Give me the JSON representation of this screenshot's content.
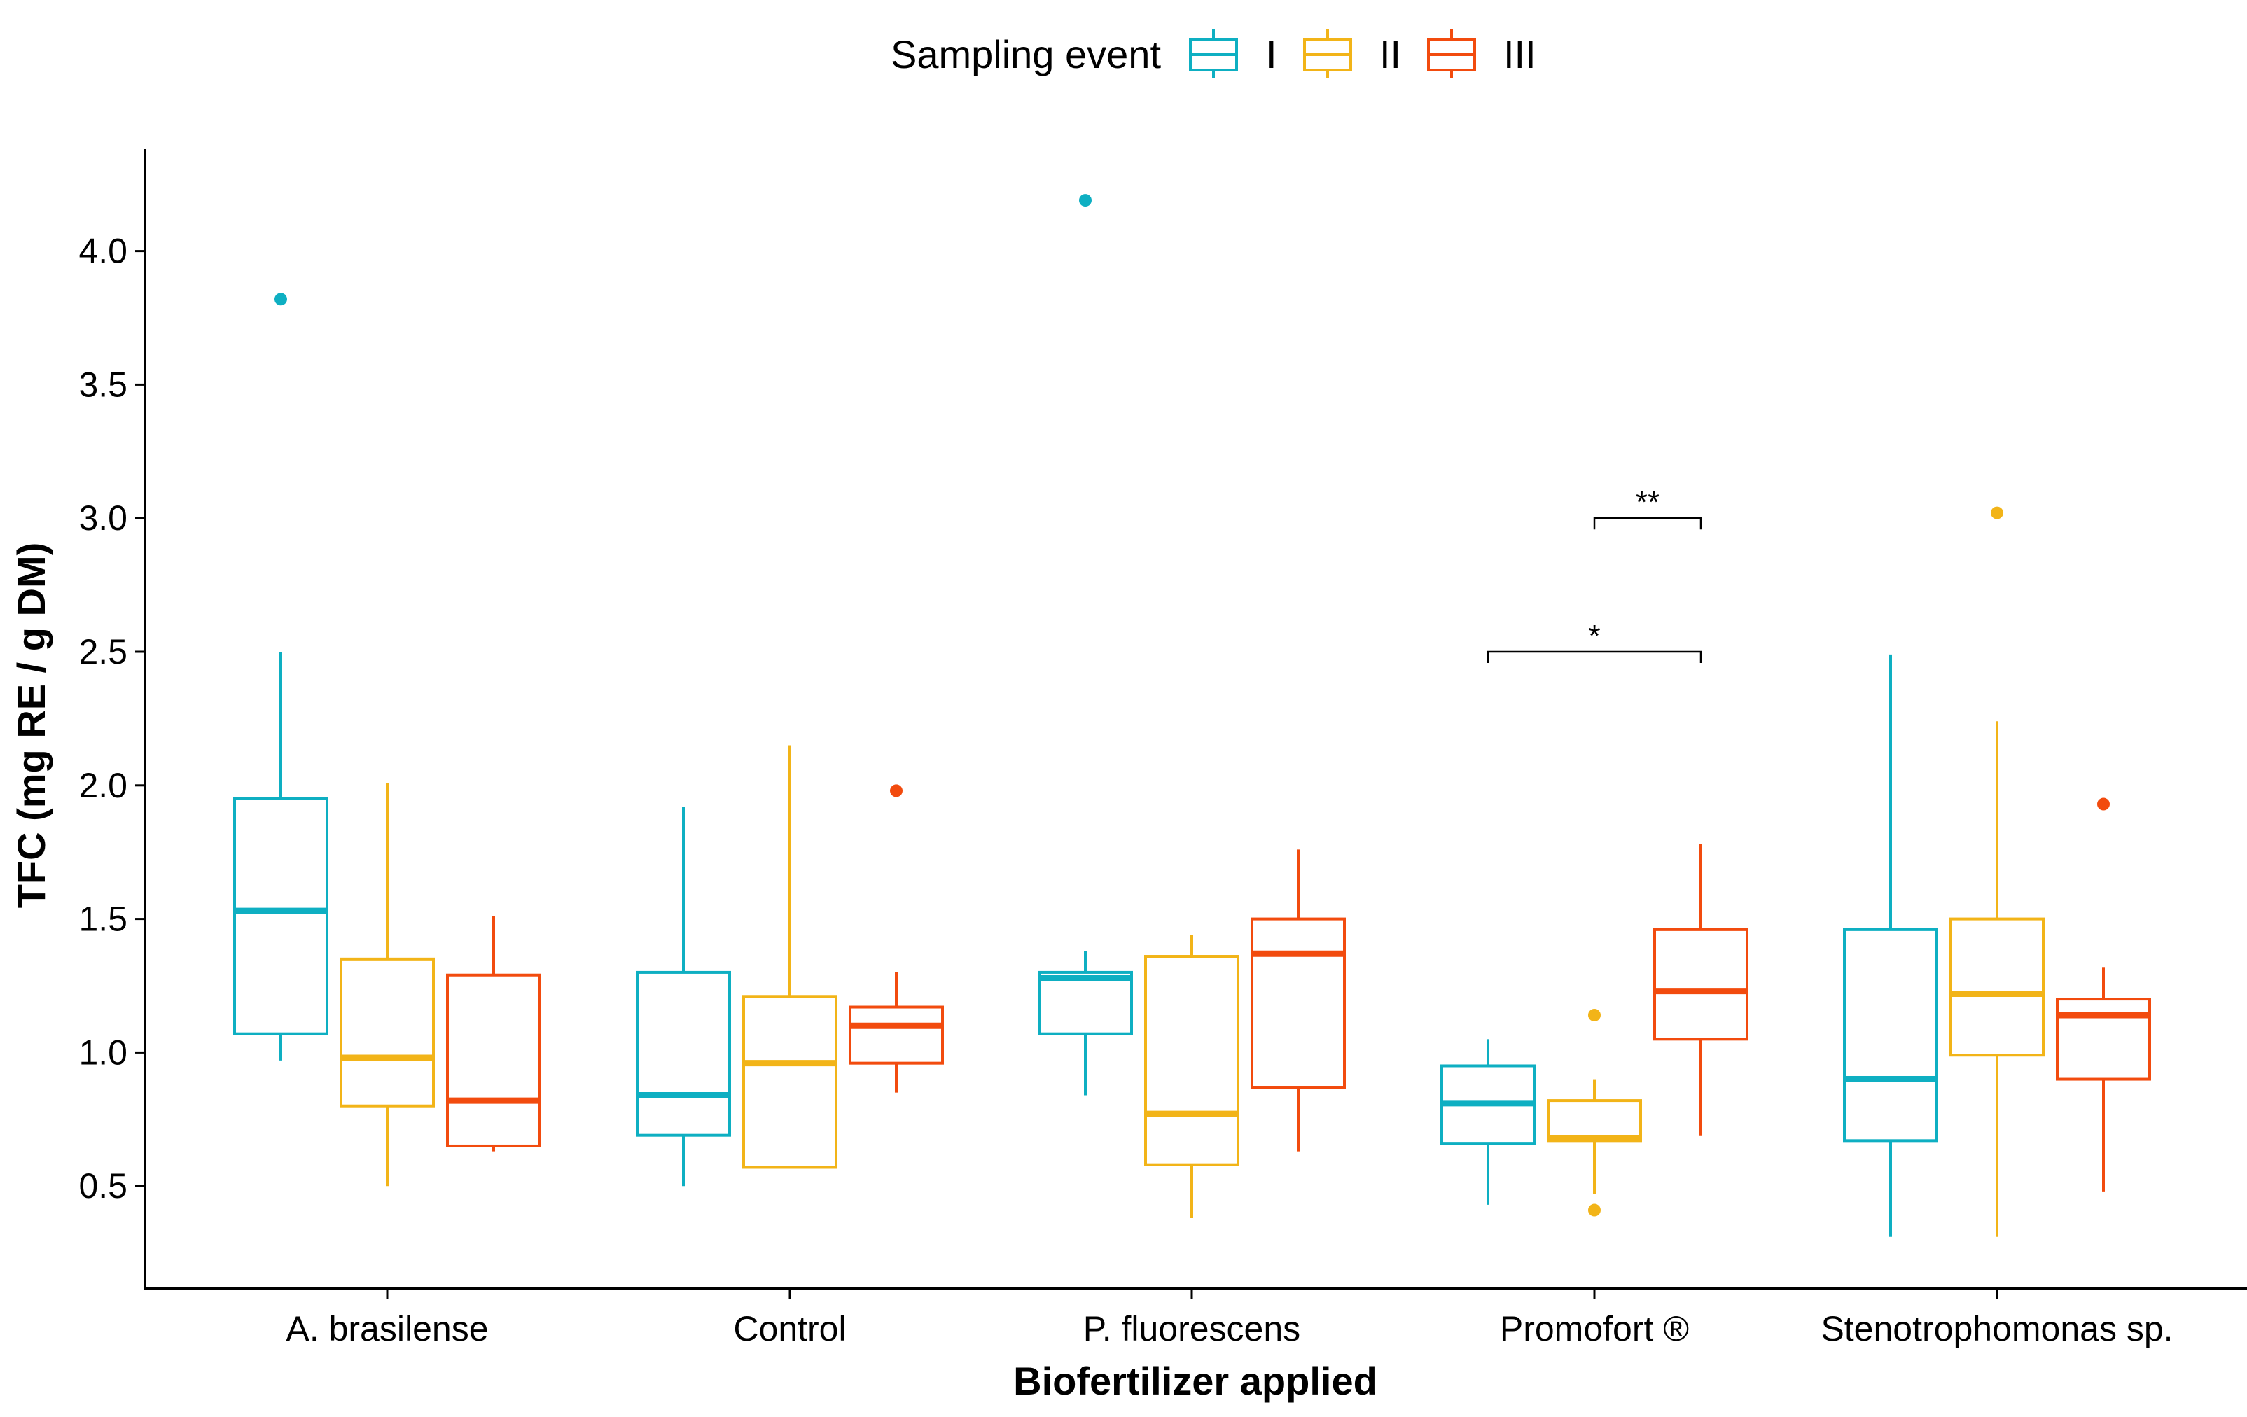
{
  "chart_data": {
    "type": "boxplot",
    "xlabel": "Biofertilizer applied",
    "ylabel": "TFC (mg RE / g DM)",
    "ylim": [
      0.15,
      4.4
    ],
    "y_ticks": [
      0.5,
      1.0,
      1.5,
      2.0,
      2.5,
      3.0,
      3.5,
      4.0
    ],
    "y_tick_labels": [
      "0.5",
      "1.0",
      "1.5",
      "2.0",
      "2.5",
      "3.0",
      "3.5",
      "4.0"
    ],
    "grid": false,
    "legend": {
      "title": "Sampling event",
      "position": "top"
    },
    "categories": [
      "A. brasilense",
      "Control",
      "P. fluorescens",
      "Promofort ®",
      "Stenotrophomonas sp."
    ],
    "series": [
      {
        "name": "I",
        "color": "#0EAFC2",
        "boxes": [
          {
            "whisker_low": 0.97,
            "q1": 1.07,
            "median": 1.53,
            "q3": 1.95,
            "whisker_high": 2.5,
            "outliers": [
              3.82
            ]
          },
          {
            "whisker_low": 0.5,
            "q1": 0.69,
            "median": 0.84,
            "q3": 1.3,
            "whisker_high": 1.92,
            "outliers": []
          },
          {
            "whisker_low": 0.84,
            "q1": 1.07,
            "median": 1.28,
            "q3": 1.3,
            "whisker_high": 1.38,
            "outliers": [
              4.19
            ]
          },
          {
            "whisker_low": 0.43,
            "q1": 0.66,
            "median": 0.81,
            "q3": 0.95,
            "whisker_high": 1.05,
            "outliers": []
          },
          {
            "whisker_low": 0.31,
            "q1": 0.67,
            "median": 0.9,
            "q3": 1.46,
            "whisker_high": 2.49,
            "outliers": []
          }
        ]
      },
      {
        "name": "II",
        "color": "#F2B418",
        "boxes": [
          {
            "whisker_low": 0.5,
            "q1": 0.8,
            "median": 0.98,
            "q3": 1.35,
            "whisker_high": 2.01,
            "outliers": []
          },
          {
            "whisker_low": 0.57,
            "q1": 0.57,
            "median": 0.96,
            "q3": 1.21,
            "whisker_high": 2.15,
            "outliers": []
          },
          {
            "whisker_low": 0.38,
            "q1": 0.58,
            "median": 0.77,
            "q3": 1.36,
            "whisker_high": 1.44,
            "outliers": []
          },
          {
            "whisker_low": 0.47,
            "q1": 0.67,
            "median": 0.68,
            "q3": 0.82,
            "whisker_high": 0.9,
            "outliers": [
              1.14,
              0.41
            ]
          },
          {
            "whisker_low": 0.31,
            "q1": 0.99,
            "median": 1.22,
            "q3": 1.5,
            "whisker_high": 2.24,
            "outliers": [
              3.02
            ]
          }
        ]
      },
      {
        "name": "III",
        "color": "#F24B0E",
        "boxes": [
          {
            "whisker_low": 0.63,
            "q1": 0.65,
            "median": 0.82,
            "q3": 1.29,
            "whisker_high": 1.51,
            "outliers": []
          },
          {
            "whisker_low": 0.85,
            "q1": 0.96,
            "median": 1.1,
            "q3": 1.17,
            "whisker_high": 1.3,
            "outliers": [
              1.98
            ]
          },
          {
            "whisker_low": 0.63,
            "q1": 0.87,
            "median": 1.37,
            "q3": 1.5,
            "whisker_high": 1.76,
            "outliers": []
          },
          {
            "whisker_low": 0.69,
            "q1": 1.05,
            "median": 1.23,
            "q3": 1.46,
            "whisker_high": 1.78,
            "outliers": []
          },
          {
            "whisker_low": 0.48,
            "q1": 0.9,
            "median": 1.14,
            "q3": 1.2,
            "whisker_high": 1.32,
            "outliers": [
              1.93
            ]
          }
        ]
      }
    ],
    "annotations": [
      {
        "category": "Promofort ®",
        "from_series": "II",
        "to_series": "III",
        "y": 3.0,
        "label": "**"
      },
      {
        "category": "Promofort ®",
        "from_series": "I",
        "to_series": "III",
        "y": 2.5,
        "label": "*"
      }
    ]
  }
}
